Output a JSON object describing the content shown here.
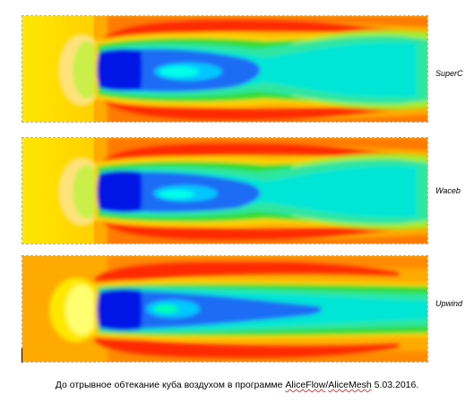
{
  "panels": [
    {
      "label": "SuperC"
    },
    {
      "label": "Waceb"
    },
    {
      "label": "Upwind"
    }
  ],
  "caption": {
    "prefix": "До отрывное обтекание куба воздухом в программе ",
    "program1": "AliceFlow",
    "slash": "/",
    "program2": "AliceMesh",
    "suffix": " 5.03.2016."
  },
  "colors": {
    "background_flow": "#ffe000",
    "orange": "#ffaa00",
    "red": "#ff2a00",
    "green": "#33dd33",
    "cyan": "#00e6d6",
    "blue_mid": "#1a6cf5",
    "blue_dark": "#0018e6"
  }
}
